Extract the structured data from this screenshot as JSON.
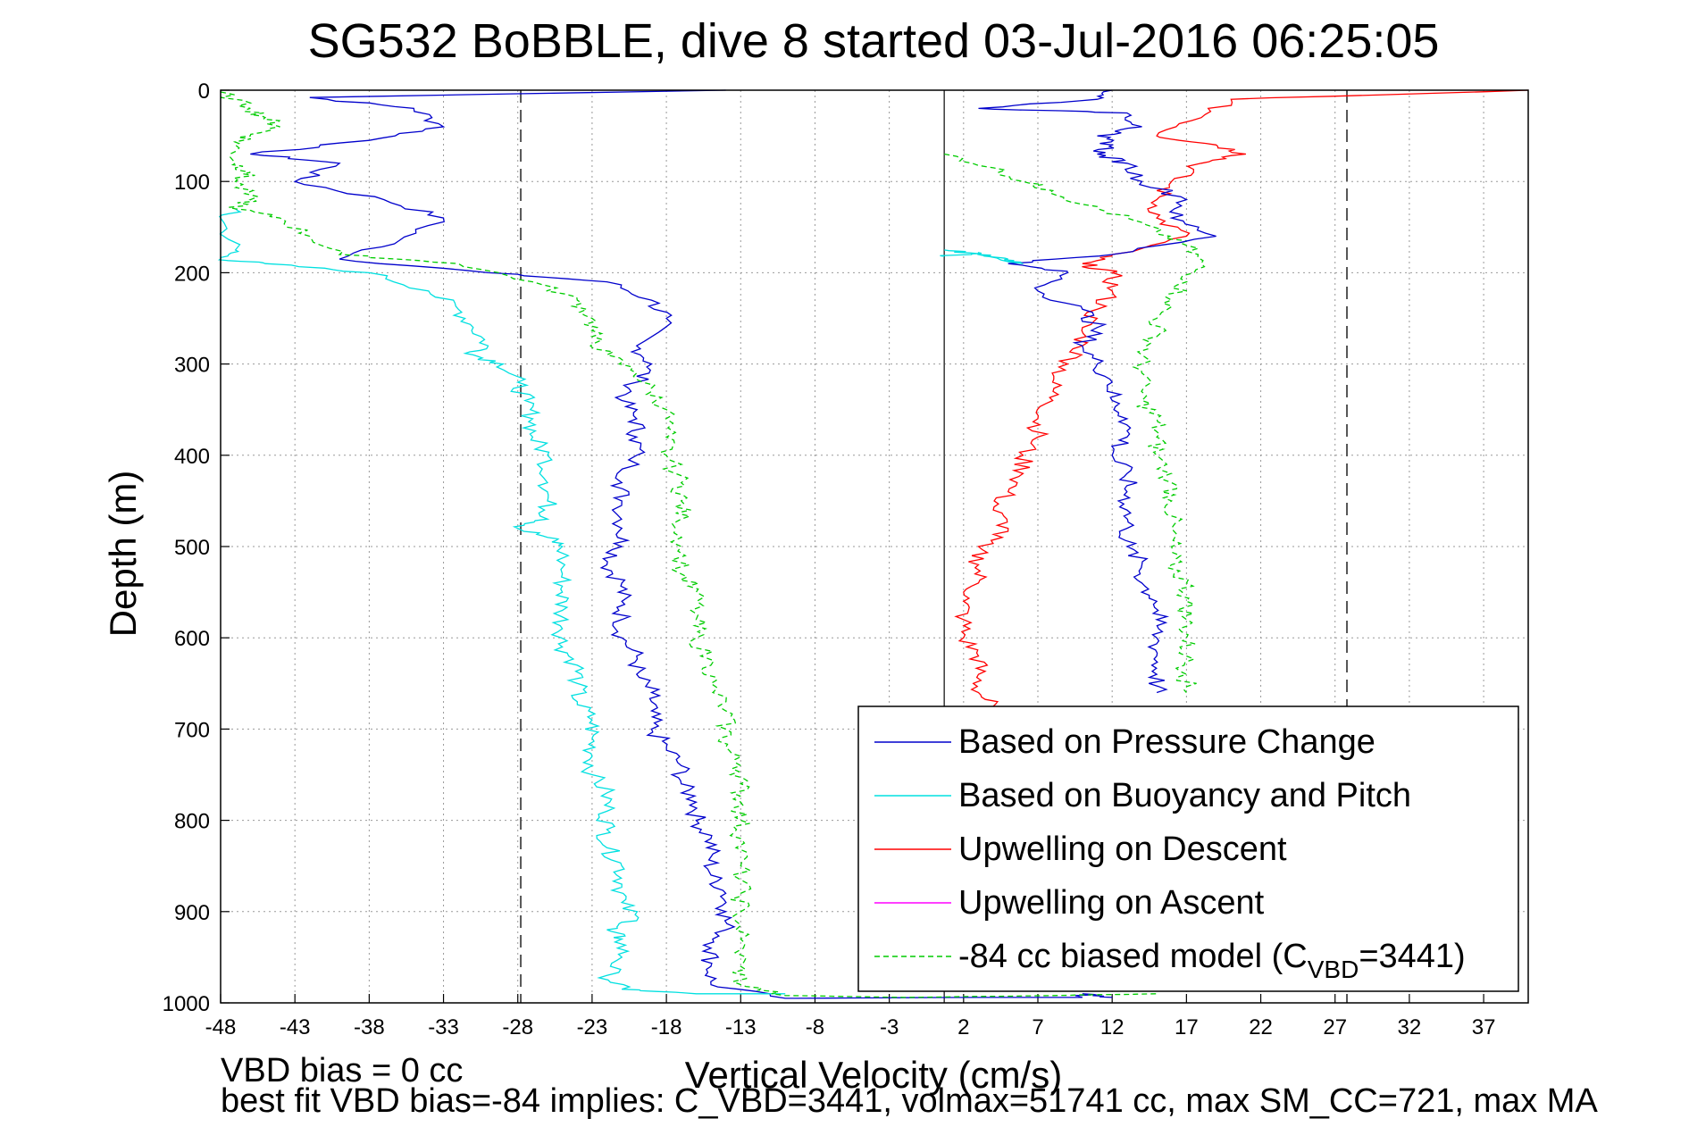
{
  "chart_data": {
    "type": "line",
    "title": "SG532 BoBBLE, dive 8 started 03-Jul-2016 06:25:05",
    "xlabel": "Vertical Velocity (cm/s)",
    "ylabel": "Depth (m)",
    "xlim": [
      -48,
      40
    ],
    "ylim": [
      0,
      1000
    ],
    "y_reversed": true,
    "grid": true,
    "x_ticks": [
      -48,
      -43,
      -38,
      -33,
      -28,
      -23,
      -18,
      -13,
      -8,
      -3,
      2,
      7,
      12,
      17,
      22,
      27,
      32,
      37
    ],
    "y_ticks": [
      0,
      100,
      200,
      300,
      400,
      500,
      600,
      700,
      800,
      900,
      1000
    ],
    "reference_lines": {
      "solid_x": 0.7,
      "dashed_x": [
        -27.8,
        27.8
      ]
    },
    "legend_position": "bottom-right",
    "series": [
      {
        "name": "Based on Pressure Change",
        "color": "#0000cc",
        "style": "solid",
        "points": [
          [
            -14,
            0
          ],
          [
            -42,
            8
          ],
          [
            -35,
            20
          ],
          [
            -33,
            40
          ],
          [
            -38,
            55
          ],
          [
            -46,
            70
          ],
          [
            -40,
            80
          ],
          [
            -43,
            100
          ],
          [
            -37,
            120
          ],
          [
            -33,
            140
          ],
          [
            -36,
            165
          ],
          [
            -40,
            185
          ],
          [
            -30,
            200
          ],
          [
            -22,
            210
          ],
          [
            -19,
            230
          ],
          [
            -18,
            250
          ],
          [
            -20,
            280
          ],
          [
            -19,
            300
          ],
          [
            -20,
            320
          ],
          [
            -21,
            340
          ],
          [
            -20,
            360
          ],
          [
            -20,
            380
          ],
          [
            -20,
            400
          ],
          [
            -21,
            430
          ],
          [
            -21,
            450
          ],
          [
            -21,
            480
          ],
          [
            -21,
            500
          ],
          [
            -22,
            520
          ],
          [
            -21,
            540
          ],
          [
            -21,
            560
          ],
          [
            -21,
            580
          ],
          [
            -21,
            600
          ],
          [
            -20,
            620
          ],
          [
            -20,
            640
          ],
          [
            -19,
            660
          ],
          [
            -19,
            680
          ],
          [
            -19,
            700
          ],
          [
            -18,
            720
          ],
          [
            -17,
            740
          ],
          [
            -17,
            760
          ],
          [
            -16,
            780
          ],
          [
            -16,
            800
          ],
          [
            -15,
            820
          ],
          [
            -15,
            840
          ],
          [
            -15,
            860
          ],
          [
            -14,
            880
          ],
          [
            -14,
            900
          ],
          [
            -14,
            920
          ],
          [
            -15,
            940
          ],
          [
            -15,
            960
          ],
          [
            -15,
            980
          ],
          [
            -10,
            995
          ],
          [
            3,
            994
          ],
          [
            10,
            994
          ],
          [
            10,
            990
          ],
          [
            12,
            994
          ]
        ]
      },
      {
        "name": "Based on Buoyancy and Pitch",
        "color": "#00e0e0",
        "style": "solid",
        "points": [
          [
            -47,
            130
          ],
          [
            -48,
            140
          ],
          [
            -47,
            175
          ],
          [
            -48,
            185
          ],
          [
            -45,
            190
          ],
          [
            -38,
            200
          ],
          [
            -34,
            220
          ],
          [
            -32,
            240
          ],
          [
            -31,
            260
          ],
          [
            -30,
            280
          ],
          [
            -31,
            290
          ],
          [
            -29,
            300
          ],
          [
            -28,
            320
          ],
          [
            -27.5,
            340
          ],
          [
            -27,
            360
          ],
          [
            -27,
            380
          ],
          [
            -26,
            400
          ],
          [
            -26,
            430
          ],
          [
            -26,
            450
          ],
          [
            -26,
            470
          ],
          [
            -28,
            480
          ],
          [
            -26,
            490
          ],
          [
            -25,
            500
          ],
          [
            -25,
            530
          ],
          [
            -25,
            550
          ],
          [
            -25,
            570
          ],
          [
            -25,
            590
          ],
          [
            -25,
            610
          ],
          [
            -24,
            630
          ],
          [
            -24,
            650
          ],
          [
            -24,
            670
          ],
          [
            -23,
            690
          ],
          [
            -23,
            710
          ],
          [
            -23,
            730
          ],
          [
            -23,
            750
          ],
          [
            -22,
            770
          ],
          [
            -22,
            790
          ],
          [
            -22,
            810
          ],
          [
            -22,
            830
          ],
          [
            -21,
            850
          ],
          [
            -21,
            870
          ],
          [
            -21,
            890
          ],
          [
            -20,
            910
          ],
          [
            -22,
            920
          ],
          [
            -21,
            930
          ],
          [
            -21,
            950
          ],
          [
            -22,
            970
          ],
          [
            -21,
            985
          ],
          [
            -16,
            990
          ],
          [
            -10,
            990
          ]
        ]
      },
      {
        "name": "Upwelling on Descent",
        "color": "#ff0000",
        "style": "solid",
        "points": [
          [
            40,
            0
          ],
          [
            20,
            10
          ],
          [
            18,
            30
          ],
          [
            15,
            50
          ],
          [
            19,
            60
          ],
          [
            21,
            70
          ],
          [
            18,
            80
          ],
          [
            16,
            100
          ],
          [
            15,
            120
          ],
          [
            15,
            140
          ],
          [
            17,
            160
          ],
          [
            12,
            180
          ],
          [
            10,
            190
          ],
          [
            12,
            200
          ],
          [
            12,
            220
          ],
          [
            11,
            240
          ],
          [
            10,
            260
          ],
          [
            10,
            280
          ],
          [
            9,
            300
          ],
          [
            8,
            320
          ],
          [
            8,
            340
          ],
          [
            7,
            360
          ],
          [
            7,
            380
          ],
          [
            6,
            400
          ],
          [
            6,
            420
          ],
          [
            5,
            440
          ],
          [
            4,
            460
          ],
          [
            5,
            480
          ],
          [
            3,
            500
          ],
          [
            3,
            520
          ],
          [
            3,
            540
          ],
          [
            2,
            560
          ],
          [
            2,
            580
          ],
          [
            2,
            600
          ],
          [
            3,
            620
          ],
          [
            3,
            640
          ],
          [
            3,
            660
          ],
          [
            4,
            675
          ]
        ]
      },
      {
        "name": "Upwelling on Ascent",
        "color": "#ff00ff",
        "style": "solid",
        "points": []
      },
      {
        "name": "-84 cc biased model (C",
        "name_sub": "VBD",
        "name_suffix": "=3441)",
        "color": "#00cc00",
        "style": "dashed",
        "points": [
          [
            -48,
            2
          ],
          [
            -46,
            20
          ],
          [
            -45,
            30
          ],
          [
            -44,
            40
          ],
          [
            -46,
            50
          ],
          [
            -47,
            60
          ],
          [
            -47,
            80
          ],
          [
            -46,
            90
          ],
          [
            -47,
            100
          ],
          [
            -46,
            120
          ],
          [
            -47,
            130
          ],
          [
            -44,
            140
          ],
          [
            -42,
            160
          ],
          [
            -40,
            180
          ],
          [
            -32,
            190
          ],
          [
            -27,
            210
          ],
          [
            -24,
            230
          ],
          [
            -23,
            250
          ],
          [
            -23,
            270
          ],
          [
            -22,
            290
          ],
          [
            -20,
            310
          ],
          [
            -19,
            330
          ],
          [
            -18,
            350
          ],
          [
            -18,
            380
          ],
          [
            -18,
            400
          ],
          [
            -17,
            430
          ],
          [
            -17,
            450
          ],
          [
            -17,
            470
          ],
          [
            -17,
            500
          ],
          [
            -17,
            530
          ],
          [
            -16,
            550
          ],
          [
            -16,
            580
          ],
          [
            -16,
            600
          ],
          [
            -15,
            630
          ],
          [
            -15,
            650
          ],
          [
            -14,
            680
          ],
          [
            -14,
            700
          ],
          [
            -14,
            720
          ],
          [
            -13,
            740
          ],
          [
            -13,
            760
          ],
          [
            -13,
            780
          ],
          [
            -13,
            800
          ],
          [
            -13,
            820
          ],
          [
            -13,
            850
          ],
          [
            -13,
            880
          ],
          [
            -13,
            900
          ],
          [
            -13,
            930
          ],
          [
            -13,
            960
          ],
          [
            -13,
            980
          ],
          [
            -10,
            992
          ],
          [
            -2,
            994
          ],
          [
            8,
            992
          ],
          [
            15,
            990
          ]
        ]
      },
      {
        "name": "Upper right green model",
        "legend": false,
        "color": "#00cc00",
        "style": "dashed",
        "points": [
          [
            0.7,
            70
          ],
          [
            4,
            85
          ],
          [
            6,
            100
          ],
          [
            8,
            110
          ],
          [
            10,
            125
          ],
          [
            13,
            140
          ],
          [
            15,
            155
          ],
          [
            17,
            170
          ],
          [
            18,
            190
          ],
          [
            17,
            210
          ],
          [
            16,
            230
          ],
          [
            15,
            250
          ],
          [
            15,
            270
          ],
          [
            14,
            290
          ],
          [
            14,
            310
          ],
          [
            14,
            340
          ],
          [
            15,
            360
          ],
          [
            15,
            380
          ],
          [
            15,
            400
          ],
          [
            16,
            430
          ],
          [
            16,
            450
          ],
          [
            16,
            480
          ],
          [
            16,
            500
          ],
          [
            16,
            520
          ],
          [
            17,
            540
          ],
          [
            17,
            560
          ],
          [
            17,
            580
          ],
          [
            17,
            600
          ],
          [
            17,
            620
          ],
          [
            17,
            640
          ],
          [
            17,
            660
          ]
        ]
      },
      {
        "name": "Upper right blue pressure",
        "legend": false,
        "color": "#0000cc",
        "style": "solid",
        "points": [
          [
            12,
            0
          ],
          [
            11,
            10
          ],
          [
            3,
            20
          ],
          [
            13,
            25
          ],
          [
            14,
            40
          ],
          [
            11,
            50
          ],
          [
            12,
            60
          ],
          [
            11,
            70
          ],
          [
            13,
            80
          ],
          [
            14,
            100
          ],
          [
            17,
            120
          ],
          [
            16,
            140
          ],
          [
            19,
            160
          ],
          [
            12,
            180
          ],
          [
            5,
            190
          ],
          [
            9,
            200
          ],
          [
            7,
            220
          ],
          [
            10,
            240
          ],
          [
            11,
            260
          ],
          [
            10,
            280
          ],
          [
            11,
            300
          ],
          [
            12,
            320
          ],
          [
            12,
            340
          ],
          [
            13,
            360
          ],
          [
            13,
            380
          ],
          [
            12,
            400
          ],
          [
            13,
            420
          ],
          [
            13,
            440
          ],
          [
            13,
            460
          ],
          [
            13,
            480
          ],
          [
            13,
            500
          ],
          [
            14,
            520
          ],
          [
            14,
            540
          ],
          [
            15,
            560
          ],
          [
            15,
            580
          ],
          [
            15,
            600
          ],
          [
            15,
            620
          ],
          [
            15,
            640
          ],
          [
            15,
            660
          ]
        ]
      },
      {
        "name": "Upper right cyan buoyancy",
        "legend": false,
        "color": "#00e0e0",
        "style": "solid",
        "points": [
          [
            0.7,
            175
          ],
          [
            3,
            180
          ],
          [
            5,
            185
          ],
          [
            6,
            190
          ],
          [
            3,
            178
          ],
          [
            0.7,
            182
          ]
        ]
      }
    ]
  },
  "footer": {
    "line1": "VBD bias = 0 cc",
    "line2": "best fit VBD bias=-84 implies: C_VBD=3441, volmax=51741 cc, max SM_CC=721, max MA"
  }
}
